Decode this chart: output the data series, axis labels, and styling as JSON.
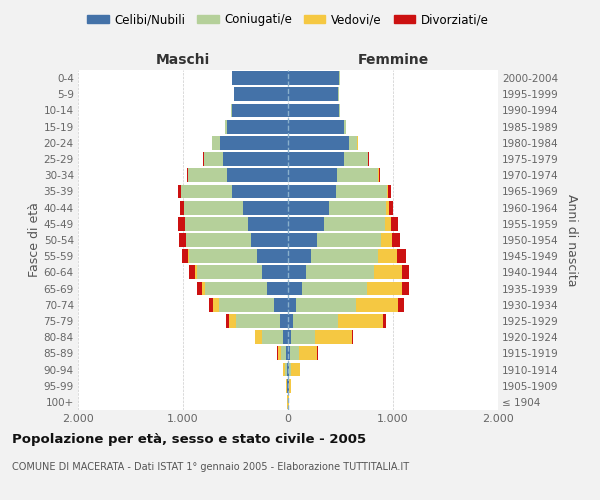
{
  "age_groups": [
    "100+",
    "95-99",
    "90-94",
    "85-89",
    "80-84",
    "75-79",
    "70-74",
    "65-69",
    "60-64",
    "55-59",
    "50-54",
    "45-49",
    "40-44",
    "35-39",
    "30-34",
    "25-29",
    "20-24",
    "15-19",
    "10-14",
    "5-9",
    "0-4"
  ],
  "birth_years": [
    "≤ 1904",
    "1905-1909",
    "1910-1914",
    "1915-1919",
    "1920-1924",
    "1925-1929",
    "1930-1934",
    "1935-1939",
    "1940-1944",
    "1945-1949",
    "1950-1954",
    "1955-1959",
    "1960-1964",
    "1965-1969",
    "1970-1974",
    "1975-1979",
    "1980-1984",
    "1985-1989",
    "1990-1994",
    "1995-1999",
    "2000-2004"
  ],
  "maschi": {
    "celibi": [
      2,
      5,
      10,
      20,
      50,
      80,
      130,
      200,
      250,
      300,
      350,
      380,
      430,
      530,
      580,
      620,
      650,
      580,
      530,
      510,
      530
    ],
    "coniugati": [
      2,
      5,
      15,
      50,
      200,
      420,
      530,
      590,
      620,
      640,
      620,
      600,
      560,
      490,
      370,
      180,
      70,
      20,
      10,
      5,
      2
    ],
    "vedovi": [
      1,
      5,
      20,
      30,
      60,
      60,
      50,
      30,
      20,
      10,
      5,
      3,
      2,
      2,
      2,
      1,
      1,
      0,
      0,
      0,
      0
    ],
    "divorziati": [
      0,
      2,
      5,
      5,
      5,
      30,
      40,
      50,
      50,
      60,
      60,
      60,
      40,
      30,
      10,
      5,
      2,
      1,
      0,
      0,
      0
    ]
  },
  "femmine": {
    "nubili": [
      2,
      5,
      10,
      20,
      30,
      50,
      80,
      130,
      170,
      220,
      280,
      340,
      390,
      460,
      470,
      530,
      580,
      530,
      490,
      480,
      490
    ],
    "coniugate": [
      2,
      5,
      20,
      80,
      230,
      430,
      570,
      620,
      650,
      640,
      610,
      580,
      540,
      480,
      390,
      230,
      80,
      20,
      5,
      3,
      2
    ],
    "vedove": [
      1,
      20,
      80,
      180,
      350,
      420,
      400,
      340,
      270,
      180,
      100,
      60,
      30,
      10,
      5,
      3,
      2,
      1,
      0,
      0,
      0
    ],
    "divorziate": [
      0,
      2,
      5,
      5,
      10,
      30,
      50,
      60,
      60,
      80,
      80,
      70,
      40,
      30,
      10,
      5,
      3,
      1,
      0,
      0,
      0
    ]
  },
  "colors": {
    "celibi": "#4472a8",
    "coniugati": "#b5d09a",
    "vedovi": "#f5c842",
    "divorziati": "#cc1111"
  },
  "xlim": 2000,
  "title": "Popolazione per età, sesso e stato civile - 2005",
  "subtitle": "COMUNE DI MACERATA - Dati ISTAT 1° gennaio 2005 - Elaborazione TUTTITALIA.IT",
  "ylabel_left": "Fasce di età",
  "ylabel_right": "Anni di nascita",
  "xlabel_maschi": "Maschi",
  "xlabel_femmine": "Femmine",
  "legend_labels": [
    "Celibi/Nubili",
    "Coniugati/e",
    "Vedovi/e",
    "Divorziati/e"
  ],
  "xtick_labels": [
    "2.000",
    "1.000",
    "0",
    "1.000",
    "2.000"
  ],
  "xtick_vals": [
    -2000,
    -1000,
    0,
    1000,
    2000
  ],
  "background": "#f2f2f2",
  "plot_bg": "#ffffff"
}
